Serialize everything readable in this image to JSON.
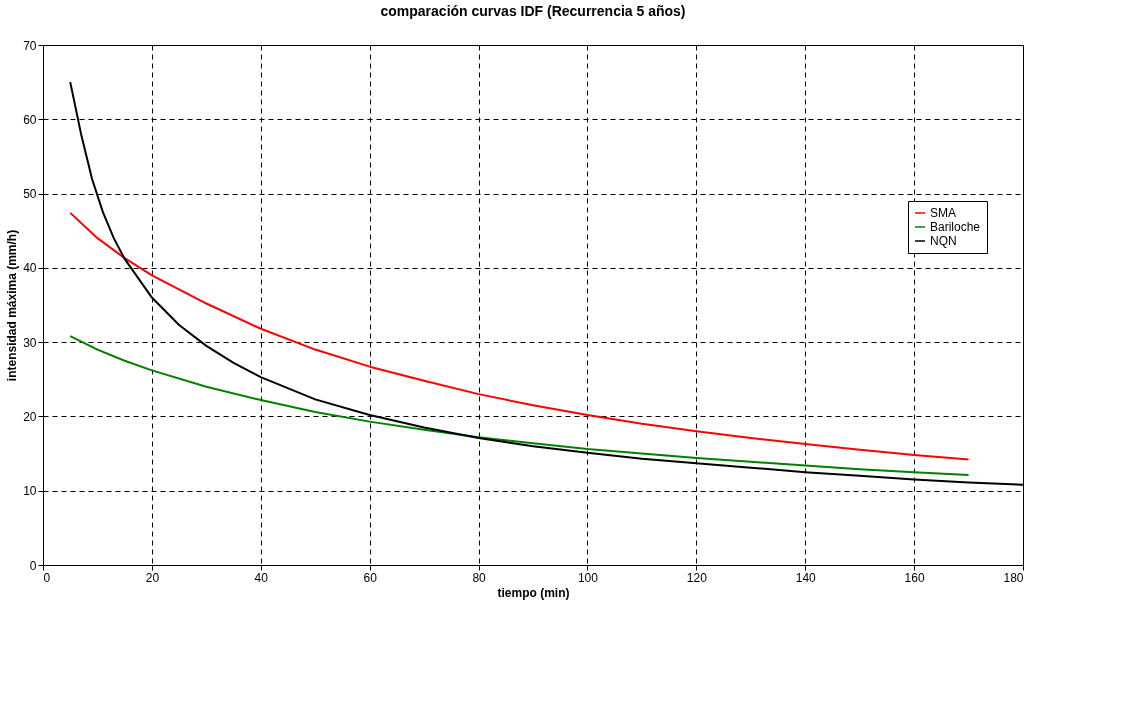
{
  "chart_data": {
    "type": "line",
    "title": "comparación curvas IDF (Recurrencia 5 años)",
    "xlabel": "tiempo (min)",
    "ylabel": "intensidad máxima (mm/h)",
    "xlim": [
      0,
      180
    ],
    "xticks": [
      0,
      20,
      40,
      60,
      80,
      100,
      120,
      140,
      160,
      180
    ],
    "ylim": [
      0,
      70
    ],
    "yticks": [
      0,
      10,
      20,
      30,
      40,
      50,
      60,
      70
    ],
    "grid": true,
    "legend": "right",
    "marker": "none",
    "line_style": "solid",
    "series": [
      {
        "name": "SMA",
        "color": "#ff0000",
        "x": [
          5,
          10,
          15,
          20,
          30,
          40,
          50,
          60,
          70,
          80,
          90,
          100,
          110,
          120,
          130,
          140,
          150,
          160,
          170
        ],
        "values": [
          47.4,
          44,
          41.3,
          39,
          35.2,
          31.8,
          29,
          26.7,
          24.8,
          23,
          21.5,
          20.2,
          19,
          18,
          17.1,
          16.3,
          15.5,
          14.8,
          14.2
        ]
      },
      {
        "name": "Bariloche",
        "color": "#008000",
        "x": [
          5,
          10,
          15,
          20,
          30,
          40,
          50,
          60,
          70,
          80,
          90,
          100,
          110,
          120,
          130,
          140,
          150,
          160,
          170
        ],
        "values": [
          30.8,
          29,
          27.5,
          26.2,
          24,
          22.2,
          20.6,
          19.3,
          18.2,
          17.2,
          16.4,
          15.6,
          15,
          14.4,
          13.9,
          13.4,
          12.9,
          12.5,
          12.1
        ]
      },
      {
        "name": "NQN",
        "color": "#000000",
        "x": [
          5,
          7,
          9,
          11,
          13,
          15,
          20,
          25,
          30,
          35,
          40,
          50,
          60,
          70,
          80,
          90,
          100,
          110,
          120,
          130,
          140,
          150,
          160,
          170,
          180
        ],
        "values": [
          65,
          58,
          52,
          47.5,
          44,
          41.2,
          36,
          32.3,
          29.5,
          27.2,
          25.3,
          22.3,
          20.2,
          18.5,
          17.1,
          16,
          15.1,
          14.3,
          13.7,
          13.1,
          12.5,
          12,
          11.5,
          11.1,
          10.8
        ]
      }
    ]
  }
}
